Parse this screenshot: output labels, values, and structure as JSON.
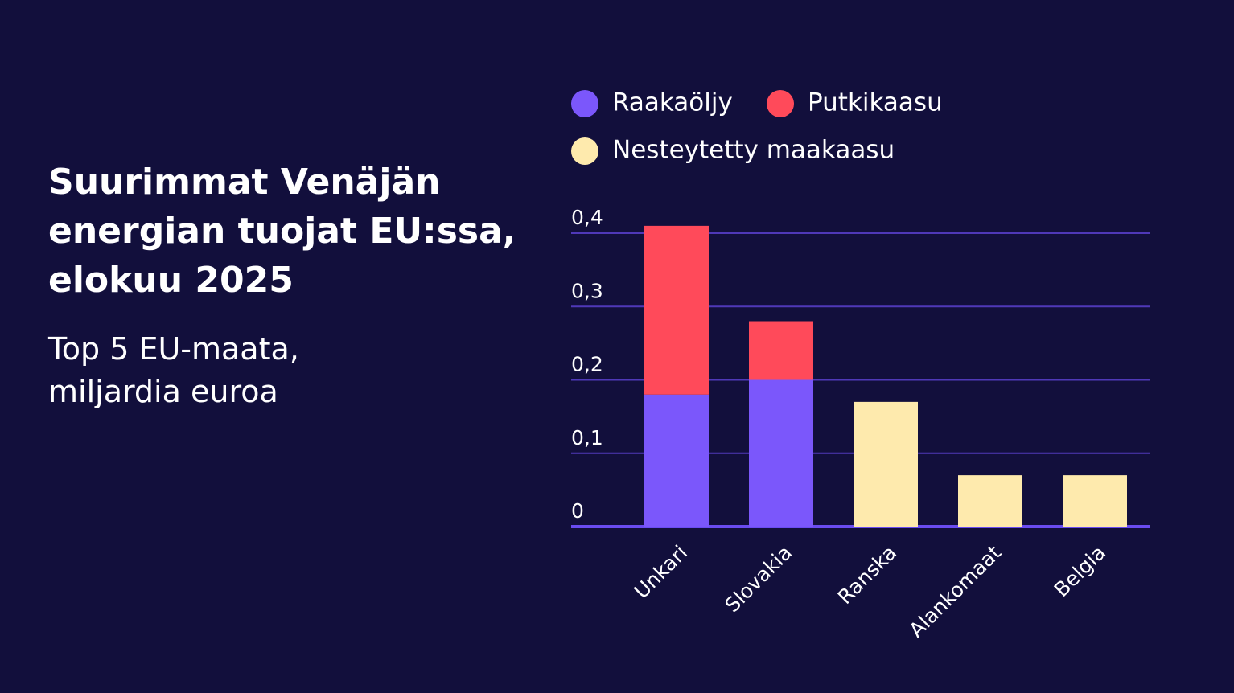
{
  "chart_data": {
    "type": "stacked-bar",
    "title": "Suurimmat Venäjän energian tuojat EU:ssa, elokuu 2025",
    "subtitle": "Top 5 EU-maata, miljardia euroa",
    "categories": [
      "Unkari",
      "Slovakia",
      "Ranska",
      "Alankomaat",
      "Belgia"
    ],
    "series": [
      {
        "name": "Raakaöljy",
        "color": "#7b57fb",
        "values": [
          0.18,
          0.2,
          null,
          null,
          null
        ]
      },
      {
        "name": "Putkikaasu",
        "color": "#ff4a5a",
        "values": [
          0.23,
          0.08,
          null,
          null,
          null
        ]
      },
      {
        "name": "Nesteytetty maakaasu",
        "color": "#feeaad",
        "values": [
          null,
          null,
          0.17,
          0.07,
          0.07
        ]
      }
    ],
    "ylim": [
      0,
      0.4
    ],
    "yticks": [
      0,
      {
        "value": 0.1,
        "label": "0,1"
      },
      {
        "value": 0.2,
        "label": "0,2"
      },
      {
        "value": 0.3,
        "label": "0,3"
      },
      {
        "value": 0.4,
        "label": "0,4"
      }
    ],
    "grid": true
  }
}
